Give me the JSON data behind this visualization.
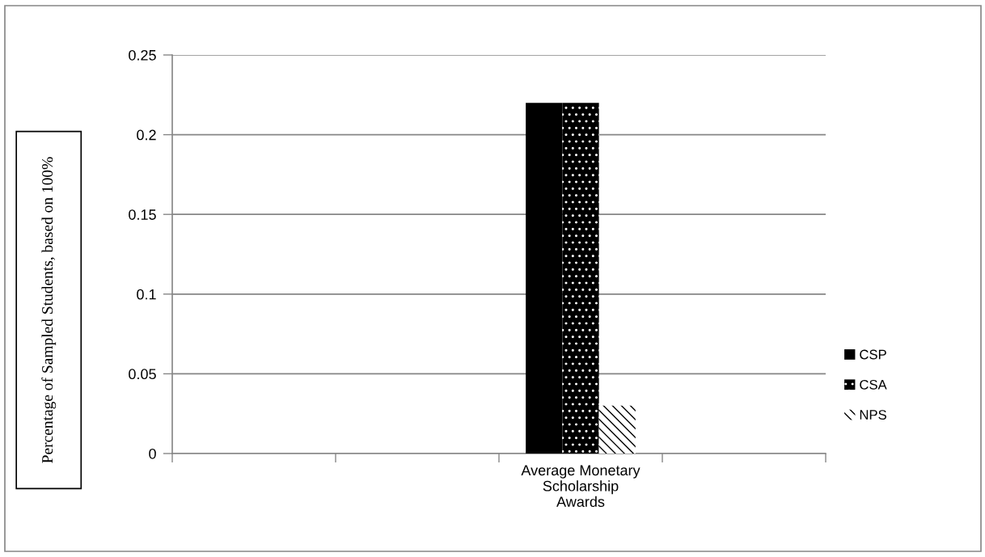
{
  "chart_data": {
    "type": "bar",
    "ylabel": "Percentage of Sampled Students, based on 100%",
    "categories": [
      null,
      null,
      "Average Monetary\nScholarship\nAwards",
      null
    ],
    "series": [
      {
        "name": "CSP",
        "color": "#000000",
        "values": [
          null,
          null,
          0.22,
          null
        ]
      },
      {
        "name": "CSA",
        "color": "#000000",
        "values": [
          null,
          null,
          0.22,
          null
        ]
      },
      {
        "name": "NPS",
        "color": "#000000",
        "values": [
          null,
          null,
          0.03,
          null
        ]
      }
    ],
    "ylim": [
      0,
      0.25
    ],
    "yticks": [
      0,
      0.05,
      0.1,
      0.15,
      0.2,
      0.25
    ],
    "grid": "y",
    "legend": "right"
  }
}
